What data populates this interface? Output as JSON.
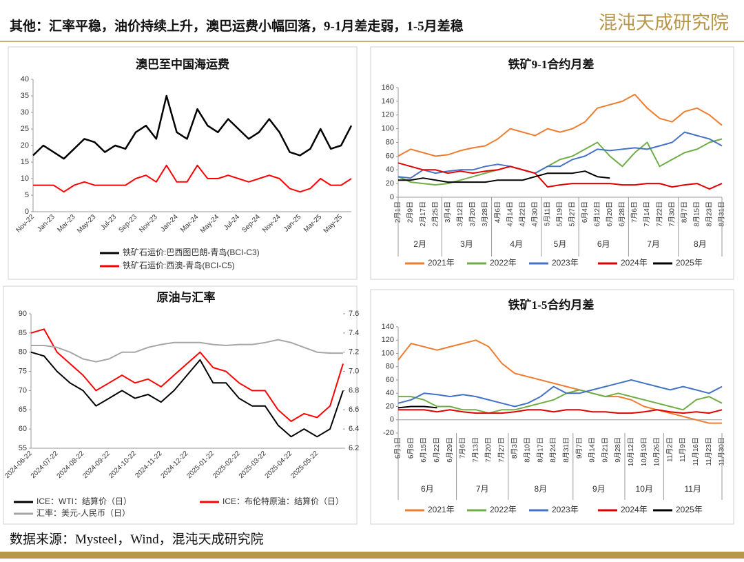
{
  "header": {
    "title": "其他：汇率平稳，油价持续上升，澳巴运费小幅回落，9-1月差走弱，1-5月差稳",
    "logo": "混沌天成研究院"
  },
  "footer": {
    "source": "数据来源：Mysteel，Wind，混沌天成研究院"
  },
  "chart_data": [
    {
      "type": "line",
      "title": "澳巴至中国海运费",
      "categories": [
        "Nov-22",
        null,
        "Jan-23",
        null,
        "Mar-23",
        null,
        "May-23",
        null,
        "Jul-23",
        null,
        "Sep-23",
        null,
        "Nov-23",
        null,
        "Jan-24",
        null,
        "Mar-24",
        null,
        "May-24",
        null,
        "Jul-24",
        null,
        "Sep-24",
        null,
        "Nov-24",
        null,
        "Jan-25",
        null,
        "Mar-25",
        null,
        "May-25",
        null
      ],
      "ylim": [
        0,
        40
      ],
      "yticks": [
        0,
        5,
        10,
        15,
        20,
        25,
        30,
        35,
        40
      ],
      "series": [
        {
          "name": "铁矿石运价:巴西图巴朗-青岛(BCI-C3)",
          "color": "#000000",
          "values": [
            17,
            20,
            18,
            16,
            19,
            22,
            21,
            18,
            20,
            19,
            24,
            26,
            22,
            35,
            24,
            22,
            31,
            26,
            24,
            28,
            25,
            22,
            24,
            28,
            24,
            18,
            17,
            19,
            25,
            19,
            20,
            26
          ]
        },
        {
          "name": "铁矿石运价:西澳-青岛(BCI-C5)",
          "color": "#ff0000",
          "values": [
            8,
            8,
            8,
            6,
            8,
            9,
            8,
            8,
            8,
            8,
            10,
            11,
            9,
            14,
            9,
            9,
            14,
            10,
            10,
            11,
            10,
            9,
            10,
            11,
            10,
            7,
            6,
            7,
            10,
            8,
            8,
            10
          ]
        }
      ]
    },
    {
      "type": "line",
      "title": "铁矿9-1合约月差",
      "categories": [
        "2月1日",
        "2月9日",
        "2月17日",
        "2月25日",
        "3月4日",
        "3月12日",
        "3月20日",
        "3月28日",
        "4月6日",
        "4月14日",
        "4月22日",
        "4月30日",
        "5月11日",
        "5月19日",
        "5月27日",
        "6月4日",
        "6月12日",
        "6月20日",
        "6月28日",
        "7月6日",
        "7月14日",
        "7月22日",
        "7月30日",
        "8月7日",
        "8月15日",
        "8月23日",
        "8月31日"
      ],
      "month_groups": [
        "2月",
        "3月",
        "4月",
        "5月",
        "6月",
        "7月",
        "8月"
      ],
      "ylim": [
        0,
        160
      ],
      "yticks": [
        0,
        20,
        40,
        60,
        80,
        100,
        120,
        140,
        160
      ],
      "series": [
        {
          "name": "2021年",
          "color": "#ed7d31",
          "values": [
            60,
            70,
            65,
            60,
            62,
            68,
            72,
            75,
            85,
            100,
            95,
            90,
            100,
            95,
            100,
            110,
            130,
            135,
            140,
            150,
            130,
            115,
            110,
            125,
            130,
            120,
            105
          ]
        },
        {
          "name": "2022年",
          "color": "#70ad47",
          "values": [
            30,
            22,
            20,
            18,
            20,
            25,
            30,
            35,
            40,
            45,
            40,
            35,
            45,
            55,
            60,
            70,
            80,
            60,
            45,
            65,
            80,
            45,
            55,
            65,
            70,
            80,
            85
          ]
        },
        {
          "name": "2023年",
          "color": "#4472c4",
          "values": [
            30,
            28,
            40,
            35,
            38,
            40,
            40,
            45,
            48,
            45,
            40,
            35,
            45,
            45,
            55,
            60,
            70,
            68,
            70,
            72,
            70,
            75,
            80,
            95,
            90,
            85,
            75
          ]
        },
        {
          "name": "2024年",
          "color": "#e00000",
          "values": [
            50,
            45,
            40,
            40,
            35,
            38,
            35,
            38,
            40,
            45,
            40,
            35,
            15,
            18,
            20,
            20,
            20,
            20,
            18,
            18,
            20,
            20,
            15,
            18,
            20,
            12,
            20
          ]
        },
        {
          "name": "2025年",
          "color": "#000000",
          "values": [
            25,
            25,
            28,
            25,
            22,
            22,
            22,
            22,
            25,
            25,
            25,
            30,
            35,
            35,
            35,
            38,
            30,
            28,
            null,
            null,
            null,
            null,
            null,
            null,
            null,
            null,
            null
          ]
        }
      ]
    },
    {
      "type": "line",
      "title": "原油与汇率",
      "categories": [
        "2024-06-22",
        null,
        "2024-07-22",
        null,
        "2024-08-22",
        null,
        "2024-09-22",
        null,
        "2024-10-22",
        null,
        "2024-11-22",
        null,
        "2024-12-22",
        null,
        "2025-01-22",
        null,
        "2025-02-22",
        null,
        "2025-03-22",
        null,
        "2025-04-22",
        null,
        "2025-05-22",
        null,
        null
      ],
      "ylim": [
        55,
        90
      ],
      "yticks": [
        55,
        60,
        65,
        70,
        75,
        80,
        85,
        90
      ],
      "y2lim": [
        6.2,
        7.6
      ],
      "y2ticks": [
        6.2,
        6.4,
        6.6,
        6.8,
        {
          "value": 7.0,
          "label": "7.0"
        },
        7.2,
        7.4,
        7.6
      ],
      "series": [
        {
          "name": "ICE：WTI：结算价（日）",
          "color": "#000000",
          "values": [
            80,
            79,
            75,
            72,
            70,
            66,
            68,
            70,
            68,
            69,
            67,
            70,
            74,
            78,
            72,
            72,
            68,
            66,
            66,
            61,
            58,
            60,
            58,
            60,
            70
          ]
        },
        {
          "name": "ICE：布伦特原油：结算价（日）",
          "color": "#ff0000",
          "values": [
            85,
            86,
            80,
            77,
            74,
            70,
            72,
            74,
            72,
            73,
            71,
            74,
            77,
            80,
            76,
            75,
            72,
            70,
            70,
            65,
            62,
            64,
            63,
            66,
            77
          ]
        },
        {
          "name": "汇率：美元-人民币（日）",
          "color": "#a6a6a6",
          "axis": "y2",
          "values": [
            7.27,
            7.27,
            7.25,
            7.2,
            7.13,
            7.1,
            7.13,
            7.2,
            7.2,
            7.25,
            7.28,
            7.3,
            7.3,
            7.3,
            7.28,
            7.27,
            7.28,
            7.28,
            7.3,
            7.33,
            7.3,
            7.25,
            7.2,
            7.19,
            7.19
          ]
        }
      ]
    },
    {
      "type": "line",
      "title": "铁矿1-5合约月差",
      "categories": [
        "6月1日",
        "6月8日",
        "6月15日",
        "6月22日",
        "6月29日",
        "7月6日",
        "7月13日",
        "7月20日",
        "7月27日",
        "8月3日",
        "8月10日",
        "8月17日",
        "8月24日",
        "8月31日",
        "9月7日",
        "9月14日",
        "9月21日",
        "9月28日",
        "10月12日",
        "10月19日",
        "10月26日",
        "11月2日",
        "11月9日",
        "11月16日",
        "11月23日",
        "11月30日"
      ],
      "month_groups": [
        "6月",
        "7月",
        "8月",
        "9月",
        "10月",
        "11月"
      ],
      "ylim": [
        -20,
        140
      ],
      "yticks": [
        -20,
        0,
        20,
        40,
        60,
        80,
        100,
        120,
        140
      ],
      "series": [
        {
          "name": "2021年",
          "color": "#ed7d31",
          "values": [
            90,
            115,
            110,
            105,
            110,
            115,
            120,
            110,
            85,
            70,
            65,
            60,
            55,
            50,
            45,
            40,
            35,
            35,
            30,
            20,
            15,
            10,
            5,
            0,
            -5,
            -5
          ]
        },
        {
          "name": "2022年",
          "color": "#70ad47",
          "values": [
            35,
            35,
            30,
            20,
            20,
            15,
            15,
            10,
            15,
            15,
            20,
            25,
            30,
            40,
            45,
            40,
            35,
            40,
            35,
            30,
            25,
            20,
            15,
            30,
            35,
            25
          ]
        },
        {
          "name": "2023年",
          "color": "#4472c4",
          "values": [
            25,
            30,
            40,
            38,
            35,
            38,
            35,
            30,
            25,
            20,
            25,
            35,
            50,
            40,
            40,
            45,
            50,
            55,
            60,
            55,
            50,
            45,
            50,
            45,
            40,
            50
          ]
        },
        {
          "name": "2024年",
          "color": "#e00000",
          "values": [
            15,
            15,
            15,
            12,
            15,
            12,
            10,
            10,
            10,
            12,
            15,
            15,
            12,
            15,
            15,
            12,
            12,
            10,
            10,
            12,
            15,
            12,
            10,
            12,
            10,
            15
          ]
        },
        {
          "name": "2025年",
          "color": "#000000",
          "values": [
            18,
            20,
            20,
            18,
            null,
            null,
            null,
            null,
            null,
            null,
            null,
            null,
            null,
            null,
            null,
            null,
            null,
            null,
            null,
            null,
            null,
            null,
            null,
            null,
            null,
            null
          ]
        }
      ]
    }
  ]
}
